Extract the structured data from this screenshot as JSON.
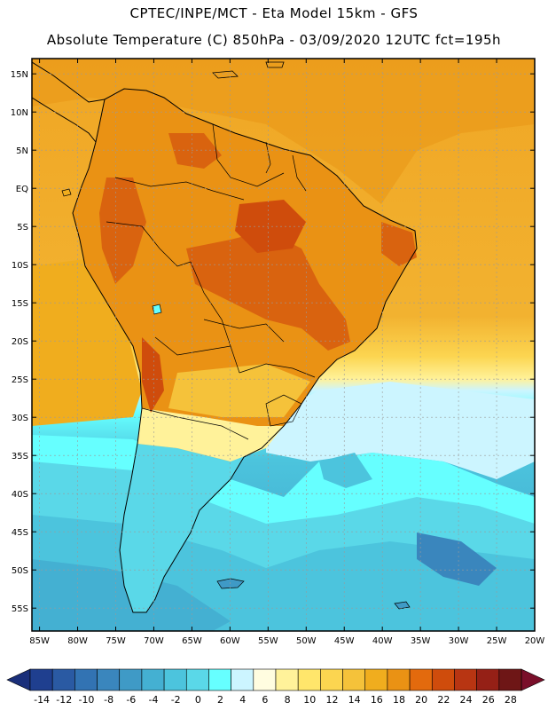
{
  "header": {
    "line1": "CPTEC/INPE/MCT -  Eta Model 15km - GFS",
    "line2": "Absolute Temperature (C) 850hPa - 03/09/2020 12UTC fct=195h"
  },
  "map": {
    "lat_labels": [
      "15N",
      "10N",
      "5N",
      "EQ",
      "5S",
      "10S",
      "15S",
      "20S",
      "25S",
      "30S",
      "35S",
      "40S",
      "45S",
      "50S",
      "55S"
    ],
    "lon_labels": [
      "85W",
      "80W",
      "75W",
      "70W",
      "65W",
      "60W",
      "55W",
      "50W",
      "45W",
      "40W",
      "35W",
      "30W",
      "25W",
      "20W"
    ],
    "lat_range": [
      17,
      -58
    ],
    "lon_range": [
      -86,
      -20
    ]
  },
  "colorbar": {
    "labels": [
      "-14",
      "-12",
      "-10",
      "-8",
      "-6",
      "-4",
      "-2",
      "0",
      "2",
      "4",
      "6",
      "8",
      "10",
      "12",
      "14",
      "16",
      "18",
      "20",
      "22",
      "24",
      "26",
      "28"
    ],
    "colors": [
      "#1f3f8f",
      "#2a5aa3",
      "#3273b3",
      "#3a86bd",
      "#3f9ac6",
      "#44b0d2",
      "#4cc4dd",
      "#5ad8e8",
      "#66ffff",
      "#ccf5ff",
      "#fffde0",
      "#fff29a",
      "#ffe66b",
      "#fcd550",
      "#f5c23a",
      "#f0ad1e",
      "#ea9214",
      "#e36a0d",
      "#cf4c0c",
      "#b83512",
      "#952016",
      "#6e1616"
    ]
  },
  "style": {
    "ocean_warm": "#f0a624",
    "ocean_mid": "#f5c23a",
    "land_base": "#ea9214",
    "land_hot": "#d9630f",
    "cold": "#5ad8e8",
    "colder": "#44b0d2",
    "coldest": "#3a86bd"
  }
}
